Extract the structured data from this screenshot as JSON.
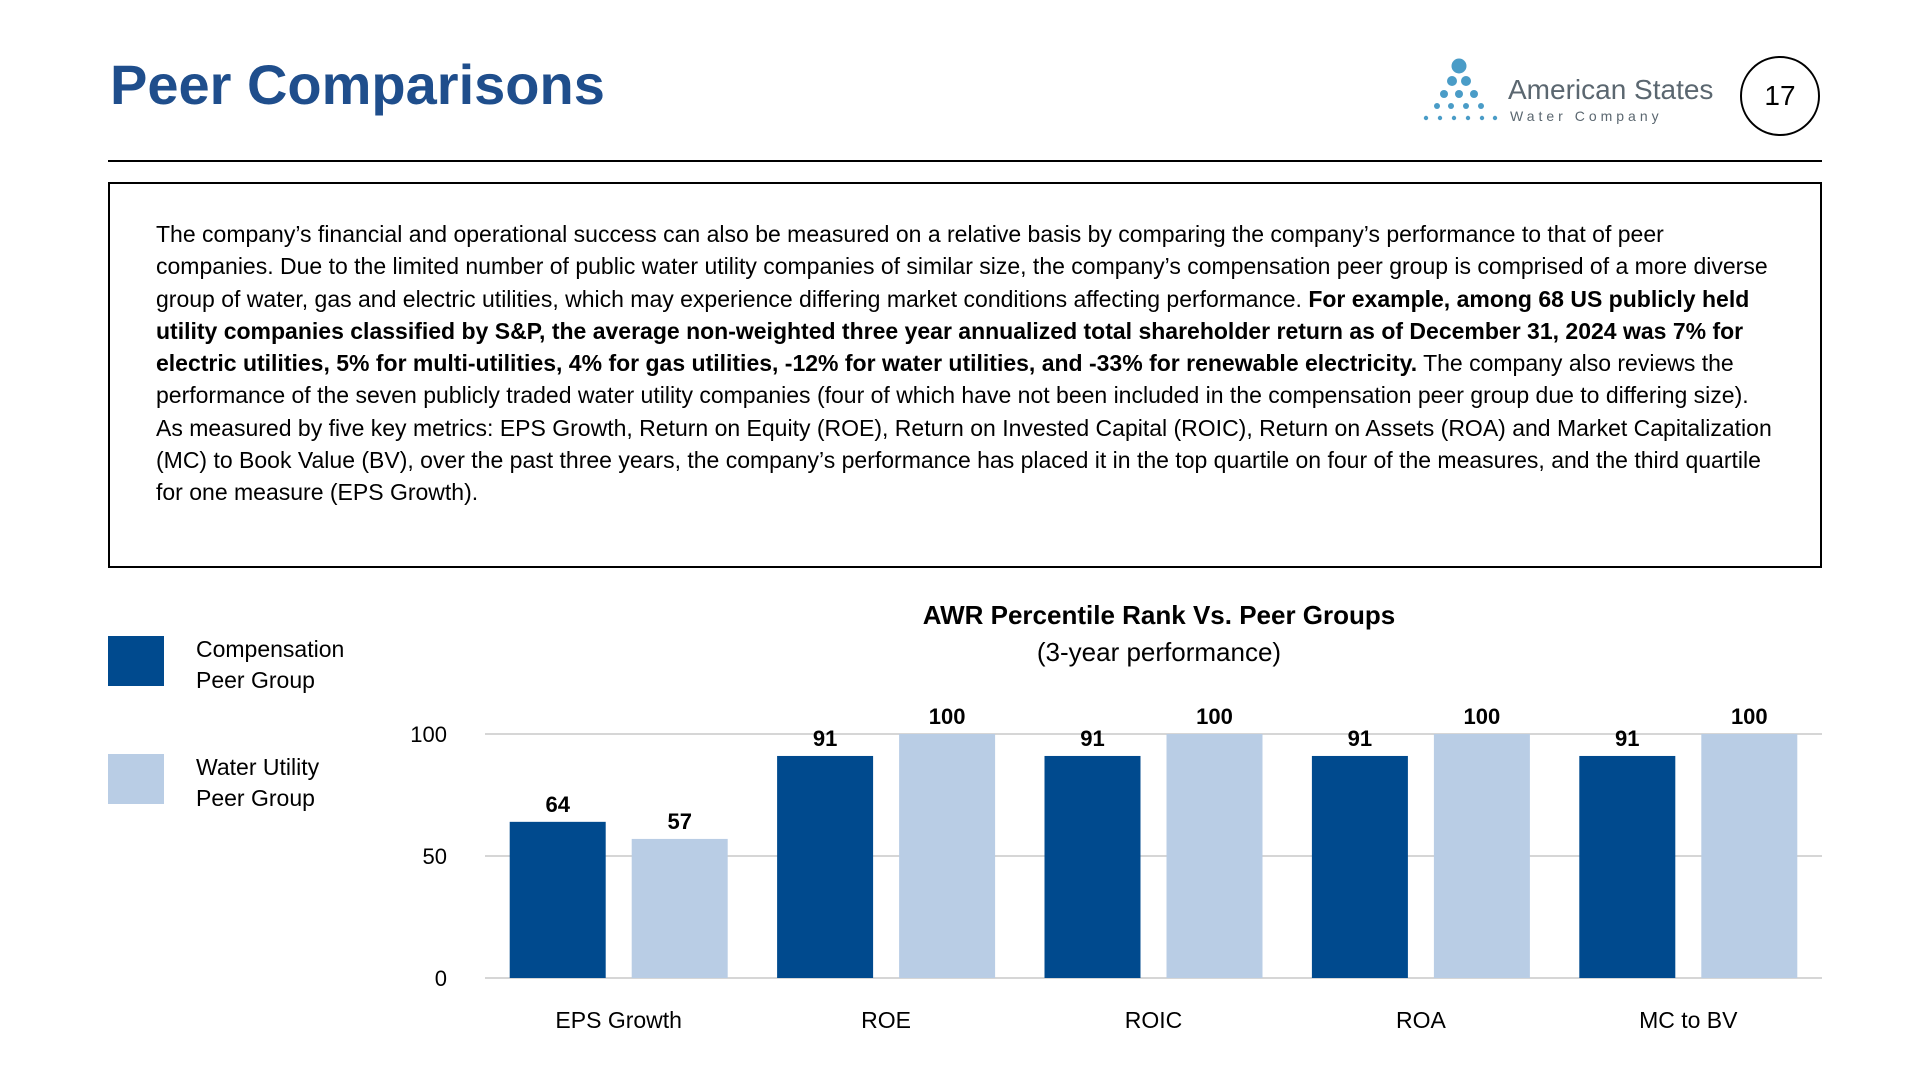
{
  "header": {
    "title": "Peer Comparisons",
    "page_number": "17",
    "logo": {
      "name": "American States",
      "subtitle": "Water Company",
      "icon": "water-drops-triangle-icon"
    }
  },
  "description": {
    "part1": "The company’s financial and operational success can also be measured on a relative basis by comparing the company’s performance to that of peer companies. Due to the limited number of public water utility companies of similar size, the company’s compensation peer group is comprised of a more diverse group of water, gas and electric utilities, which may experience differing market conditions affecting performance.",
    "bold": "For example, among 68 US publicly held utility companies classified by S&P, the average non-weighted three year annualized total shareholder return as of December 31, 2024 was 7%  for electric utilities, 5%  for multi-utilities, 4%  for gas utilities, -12%  for water utilities, and -33%  for renewable electricity.",
    "part2": "The company also reviews the performance of the seven publicly traded water utility companies (four of which have not been included in the compensation peer group due to differing size). As measured by five key metrics: EPS Growth, Return on Equity (ROE), Return on Invested Capital (ROIC), Return on Assets (ROA) and Market Capitalization (MC) to Book Value (BV), over the past three years, the company’s performance has placed it in the top quartile on four of the measures, and the third quartile for one measure (EPS Growth)."
  },
  "legend": {
    "items": [
      {
        "label_line1": "Compensation",
        "label_line2": "Peer Group",
        "color": "#004A8E"
      },
      {
        "label_line1": "Water Utility",
        "label_line2": "Peer Group",
        "color": "#B9CDE5"
      }
    ]
  },
  "colors": {
    "title": "#1F4E8C",
    "dark_bar": "#004A8E",
    "light_bar": "#B9CDE5",
    "gridline": "#C8C8C8"
  },
  "chart_data": {
    "type": "bar",
    "title": "AWR Percentile Rank Vs. Peer Groups",
    "subtitle": "(3-year performance)",
    "categories": [
      "EPS Growth",
      "ROE",
      "ROIC",
      "ROA",
      "MC to BV"
    ],
    "series": [
      {
        "name": "Compensation Peer Group",
        "values": [
          64,
          91,
          91,
          91,
          91
        ],
        "color": "#004A8E"
      },
      {
        "name": "Water Utility Peer Group",
        "values": [
          57,
          100,
          100,
          100,
          100
        ],
        "color": "#B9CDE5"
      }
    ],
    "ylim": [
      0,
      100
    ],
    "yticks": [
      0,
      50,
      100
    ],
    "grid": true,
    "data_labels": true,
    "legend_position": "left"
  }
}
